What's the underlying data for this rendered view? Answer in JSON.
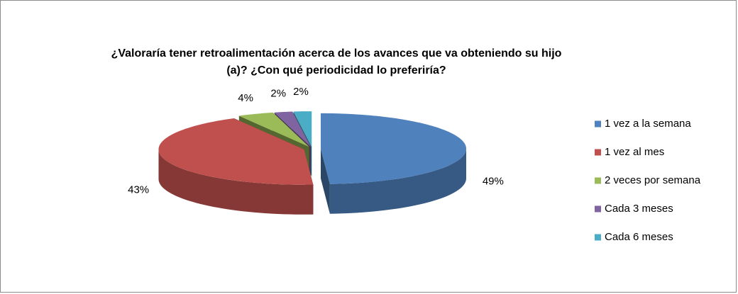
{
  "chart_data": {
    "type": "pie",
    "title": "¿Valoraría tener retroalimentación acerca de los avances que va obteniendo su hijo (a)? ¿Con qué periodicidad lo preferiría?",
    "categories": [
      "1 vez a la semana",
      "1 vez al mes",
      "2 veces por semana",
      "Cada 3 meses",
      "Cada 6 meses"
    ],
    "values": [
      49,
      43,
      4,
      2,
      2
    ],
    "value_labels": [
      "49%",
      "43%",
      "4%",
      "2%",
      "2%"
    ],
    "colors": [
      "#4f81bd",
      "#c0504d",
      "#9bbb59",
      "#8064a2",
      "#4bacc6"
    ],
    "legend": "right"
  }
}
